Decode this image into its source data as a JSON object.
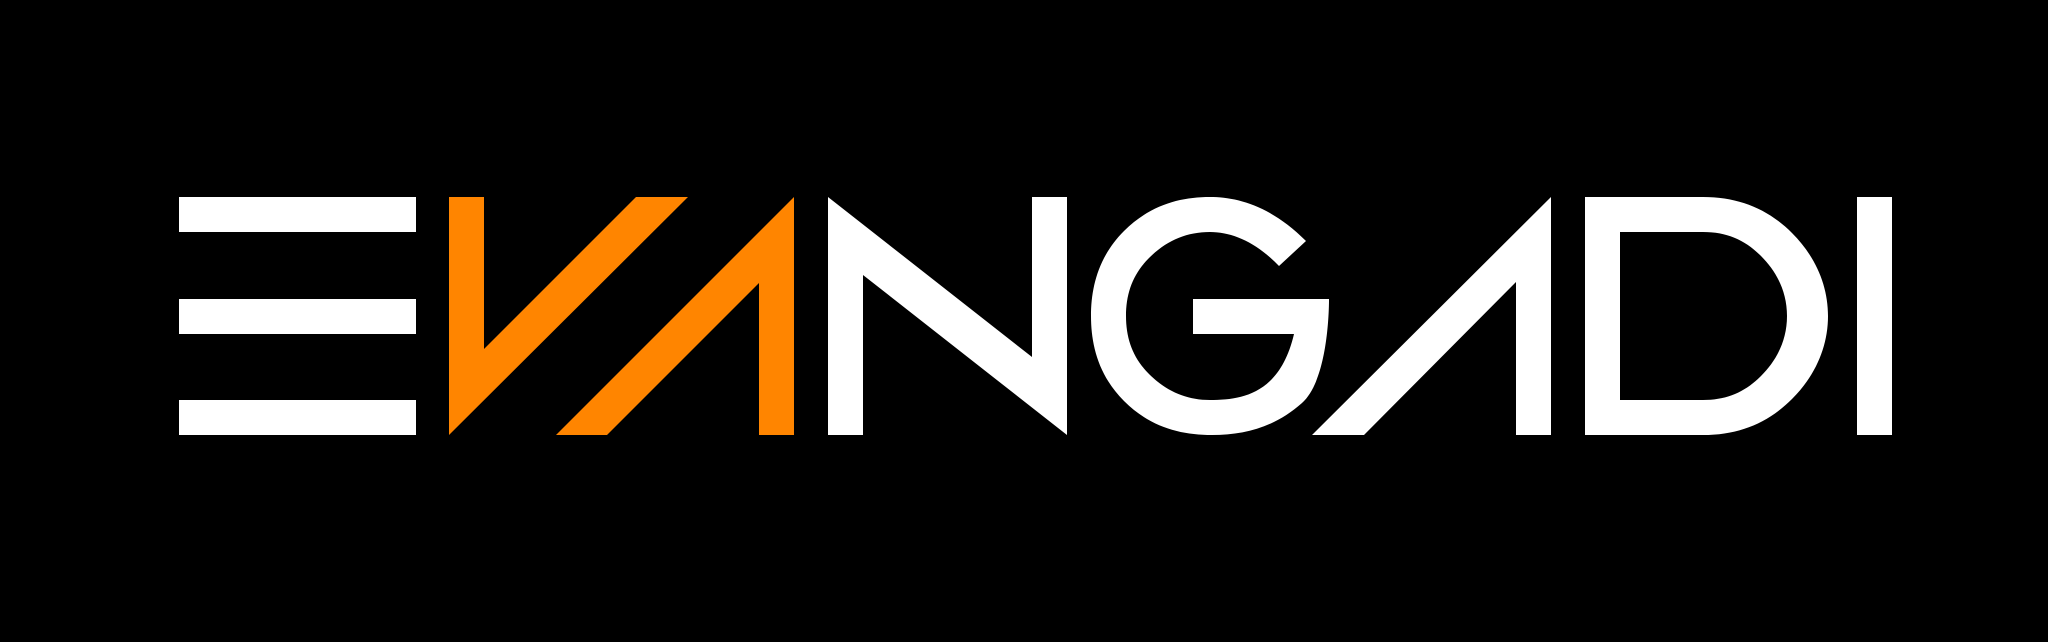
{
  "logo": {
    "text": "EVANGADI",
    "letters": [
      "E",
      "V",
      "A",
      "N",
      "G",
      "A",
      "D",
      "I"
    ]
  },
  "colors": {
    "background": "#000000",
    "primary": "#ffffff",
    "accent": "#ff8500"
  }
}
